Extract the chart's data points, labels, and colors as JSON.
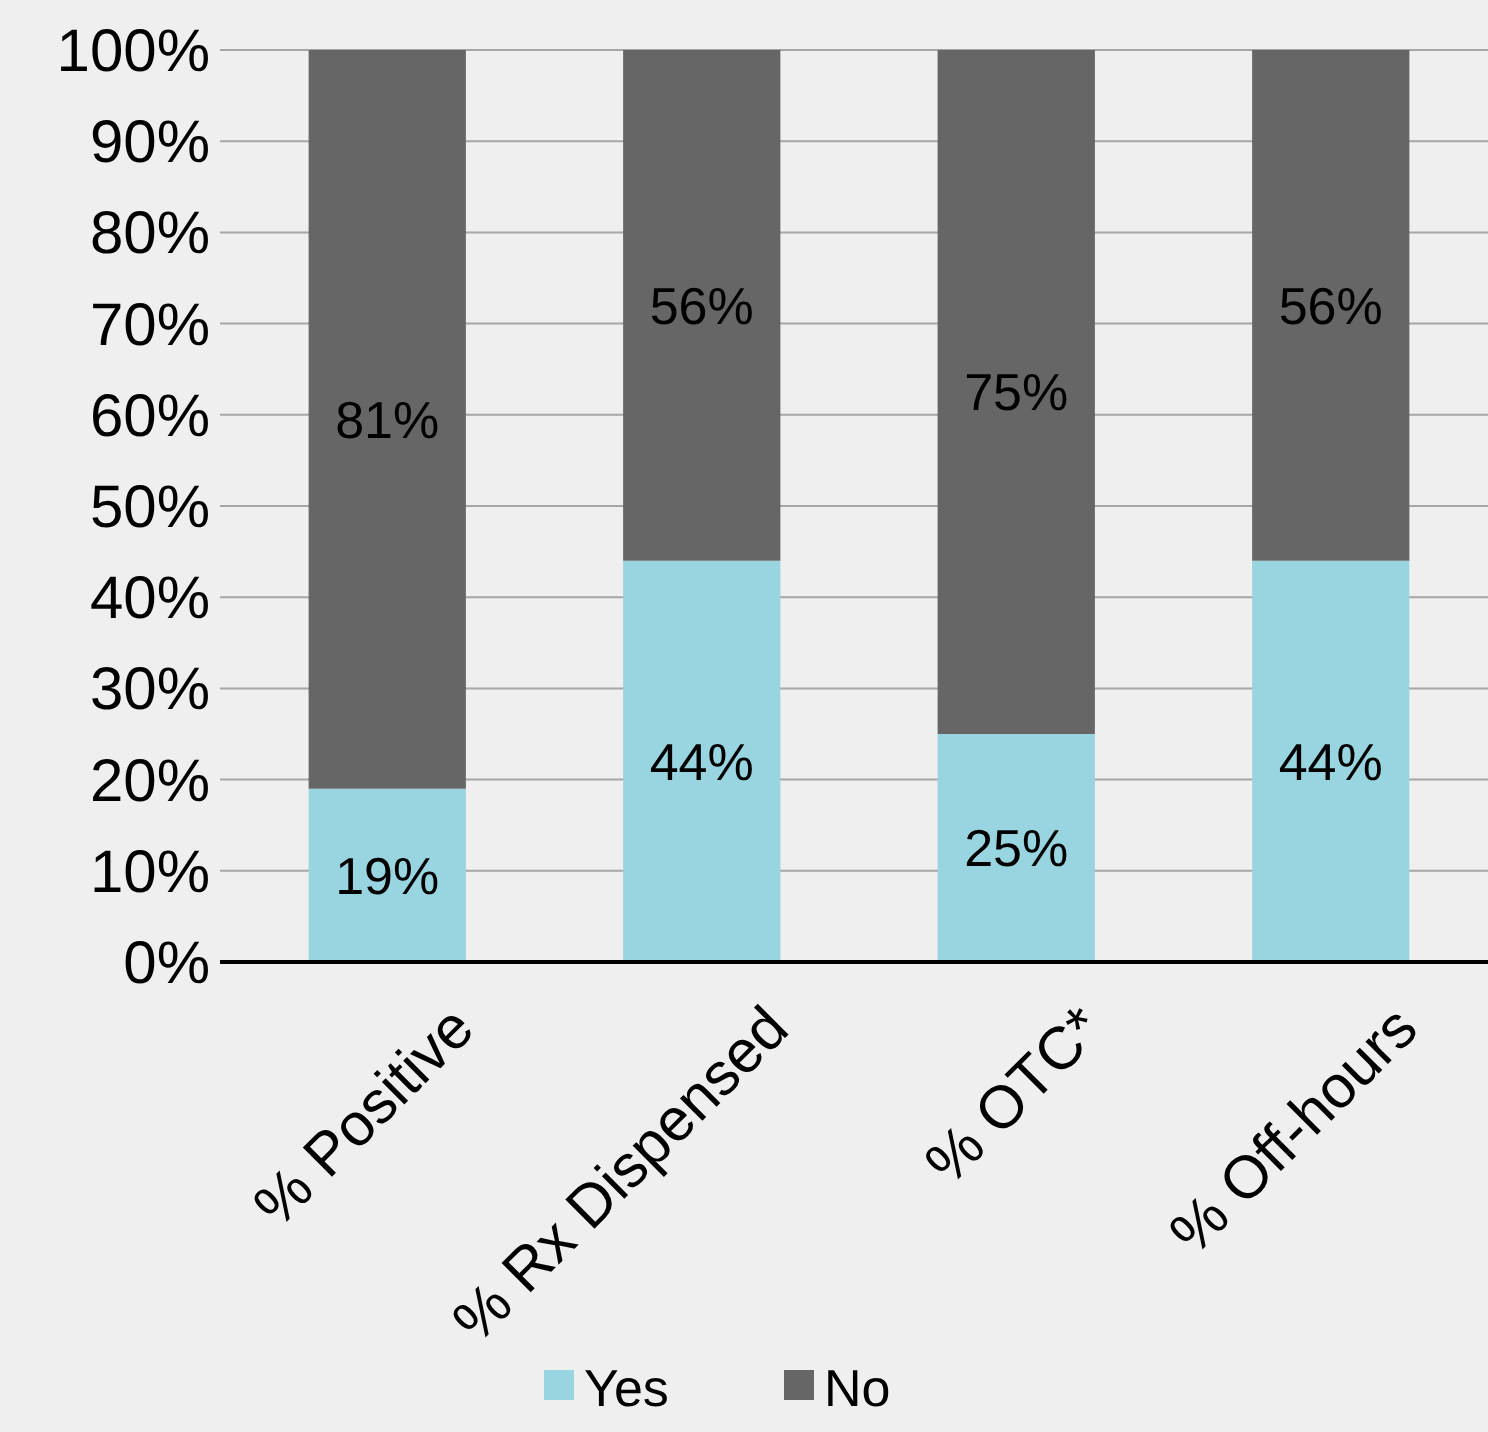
{
  "chart_data": {
    "type": "bar",
    "stacked": true,
    "categories": [
      "% Positive",
      "% Rx Dispensed",
      "% OTC*",
      "% Off-hours"
    ],
    "series": [
      {
        "name": "Yes",
        "color": "#99d5e0",
        "values": [
          19,
          44,
          25,
          44
        ],
        "value_labels": [
          "19%",
          "44%",
          "25%",
          "44%"
        ]
      },
      {
        "name": "No",
        "color": "#666666",
        "values": [
          81,
          56,
          75,
          56
        ],
        "value_labels": [
          "81%",
          "56%",
          "75%",
          "56%"
        ]
      }
    ],
    "ylim": [
      0,
      100
    ],
    "yticks": [
      {
        "value": 0,
        "label": "0%"
      },
      {
        "value": 10,
        "label": "10%"
      },
      {
        "value": 20,
        "label": "20%"
      },
      {
        "value": 30,
        "label": "30%"
      },
      {
        "value": 40,
        "label": "40%"
      },
      {
        "value": 50,
        "label": "50%"
      },
      {
        "value": 60,
        "label": "60%"
      },
      {
        "value": 70,
        "label": "70%"
      },
      {
        "value": 80,
        "label": "80%"
      },
      {
        "value": 90,
        "label": "90%"
      },
      {
        "value": 100,
        "label": "100%"
      }
    ],
    "grid": "y",
    "legend": "bottom"
  }
}
